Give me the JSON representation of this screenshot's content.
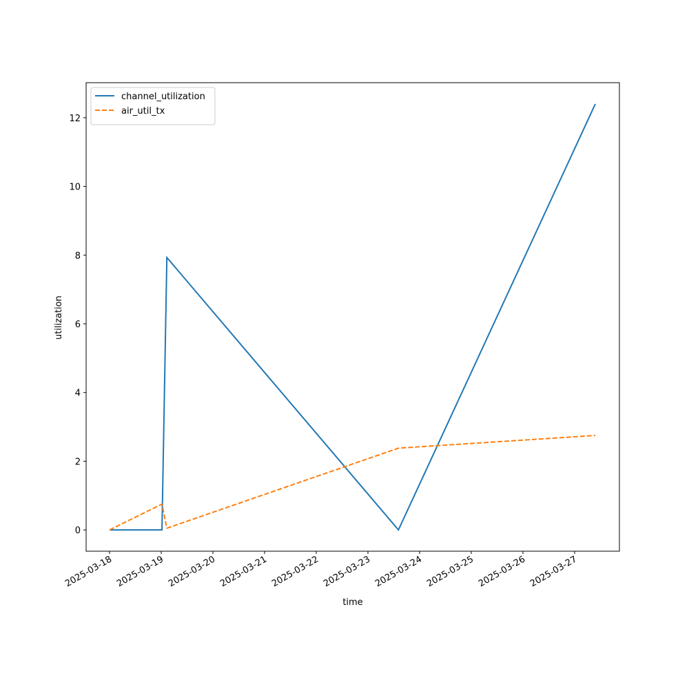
{
  "chart_data": {
    "type": "line",
    "xlabel": "time",
    "ylabel": "utilization",
    "x": [
      "2025-03-18T00:00",
      "2025-03-19T00:20",
      "2025-03-19T02:37",
      "2025-03-23T14:10",
      "2025-03-27T09:36"
    ],
    "series": [
      {
        "name": "channel_utilization",
        "color": "#1f77b4",
        "linestyle": "solid",
        "values": [
          0,
          0,
          7.93,
          0,
          12.4
        ]
      },
      {
        "name": "air_util_tx",
        "color": "#ff7f0e",
        "linestyle": "dashed",
        "values": [
          0,
          0.75,
          0.05,
          2.38,
          2.75
        ]
      }
    ],
    "xlim": [
      "2025-03-17T13:07",
      "2025-03-27T20:48"
    ],
    "xticks": [
      "2025-03-18",
      "2025-03-19",
      "2025-03-20",
      "2025-03-21",
      "2025-03-22",
      "2025-03-23",
      "2025-03-24",
      "2025-03-25",
      "2025-03-26",
      "2025-03-27"
    ],
    "ylim": [
      -0.62,
      13.02
    ],
    "yticks": [
      0,
      2,
      4,
      6,
      8,
      10,
      12
    ],
    "legend": "upper left",
    "grid": false
  }
}
